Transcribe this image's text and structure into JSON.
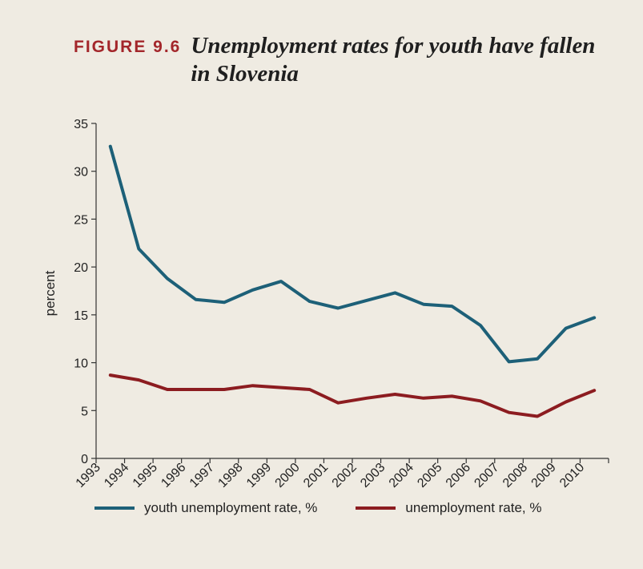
{
  "figure": {
    "label": "FIGURE 9.6",
    "title": "Unemployment rates for youth have fallen in Slovenia"
  },
  "colors": {
    "youth": "#1d6078",
    "overall": "#8c1c20",
    "label": "#a3262a"
  },
  "chart_data": {
    "type": "line",
    "title": "Unemployment rates for youth have fallen in Slovenia",
    "xlabel": "",
    "ylabel": "percent",
    "x": [
      "1993",
      "1994",
      "1995",
      "1996",
      "1997",
      "1998",
      "1999",
      "2000",
      "2001",
      "2002",
      "2003",
      "2004",
      "2005",
      "2006",
      "2007",
      "2008",
      "2009",
      "2010"
    ],
    "y_ticks": [
      0,
      5,
      10,
      15,
      20,
      25,
      30,
      35
    ],
    "ylim": [
      0,
      35
    ],
    "grid": false,
    "legend_position": "bottom",
    "series": [
      {
        "name": "youth unemployment rate, %",
        "color": "#1d6078",
        "values": [
          32.6,
          21.9,
          18.8,
          16.6,
          16.3,
          17.6,
          18.5,
          16.4,
          15.7,
          16.5,
          17.3,
          16.1,
          15.9,
          13.9,
          10.1,
          10.4,
          13.6,
          14.7
        ]
      },
      {
        "name": "unemployment rate, %",
        "color": "#8c1c20",
        "values": [
          8.7,
          8.2,
          7.2,
          7.2,
          7.2,
          7.6,
          7.4,
          7.2,
          5.8,
          6.3,
          6.7,
          6.3,
          6.5,
          6.0,
          4.8,
          4.4,
          5.9,
          7.1
        ]
      }
    ]
  }
}
